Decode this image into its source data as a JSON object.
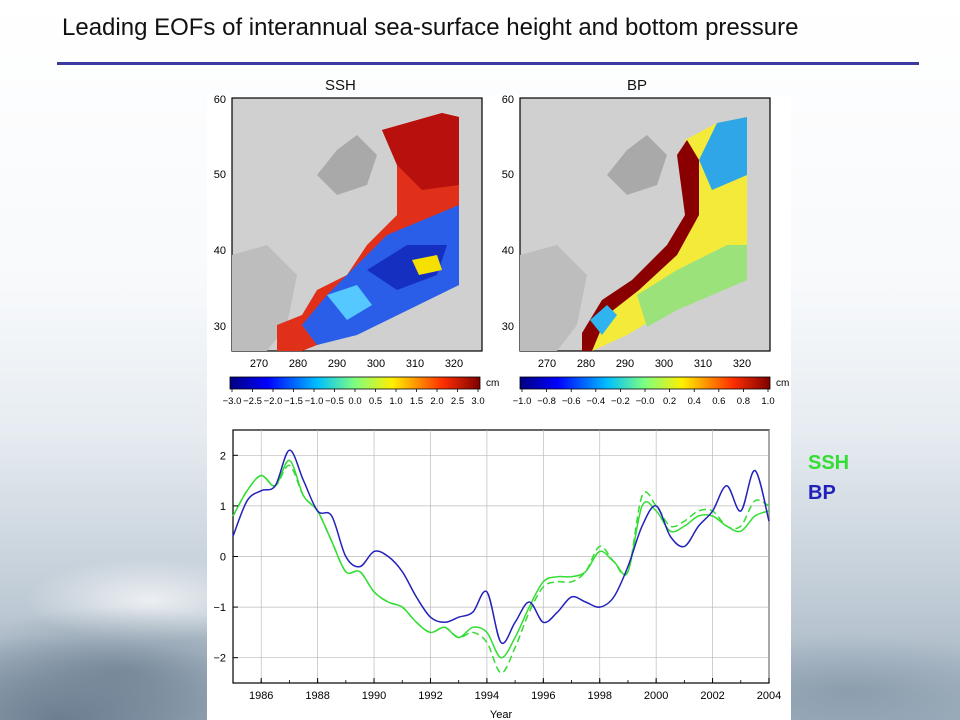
{
  "title": "Leading EOFs of interannual sea-surface height and bottom pressure",
  "maps": [
    {
      "label": "SSH",
      "lat_ticks": [
        "60",
        "50",
        "40",
        "30"
      ],
      "lon_ticks": [
        "270",
        "280",
        "290",
        "300",
        "310",
        "320"
      ],
      "colorbar_unit": "cm",
      "colorbar_ticks": [
        "−3.0",
        "−2.5",
        "−2.0",
        "−1.5",
        "−1.0",
        "−0.5",
        "0.0",
        "0.5",
        "1.0",
        "1.5",
        "2.0",
        "2.5",
        "3.0"
      ]
    },
    {
      "label": "BP",
      "lat_ticks": [
        "60",
        "50",
        "40",
        "30"
      ],
      "lon_ticks": [
        "270",
        "280",
        "290",
        "300",
        "310",
        "320"
      ],
      "colorbar_unit": "cm",
      "colorbar_ticks": [
        "−1.0",
        "−0.8",
        "−0.6",
        "−0.4",
        "−0.2",
        "−0.0",
        "0.2",
        "0.4",
        "0.6",
        "0.8",
        "1.0"
      ]
    }
  ],
  "legend": {
    "ssh": "SSH",
    "bp": "BP"
  },
  "colors": {
    "ssh": "#33dd33",
    "bp": "#2222bb",
    "rule": "#3a3aa0"
  },
  "chart_data": {
    "type": "line",
    "xlabel": "Year",
    "xlim": [
      1985,
      2004
    ],
    "ylim": [
      -2.5,
      2.5
    ],
    "x_ticks": [
      "1986",
      "1988",
      "1990",
      "1992",
      "1994",
      "1996",
      "1998",
      "2000",
      "2002",
      "2004"
    ],
    "y_ticks": [
      "2",
      "1",
      "0",
      "−1",
      "−2"
    ],
    "grid": true,
    "x": [
      1985.0,
      1985.5,
      1986.0,
      1986.5,
      1987.0,
      1987.5,
      1988.0,
      1988.5,
      1989.0,
      1989.5,
      1990.0,
      1990.5,
      1991.0,
      1991.5,
      1992.0,
      1992.5,
      1993.0,
      1993.5,
      1994.0,
      1994.5,
      1995.0,
      1995.5,
      1996.0,
      1996.5,
      1997.0,
      1997.5,
      1998.0,
      1998.5,
      1999.0,
      1999.5,
      2000.0,
      2000.5,
      2001.0,
      2001.5,
      2002.0,
      2002.5,
      2003.0,
      2003.5,
      2004.0
    ],
    "series": [
      {
        "name": "SSH",
        "style": "solid",
        "color": "green",
        "values": [
          0.8,
          1.3,
          1.6,
          1.4,
          1.9,
          1.2,
          0.9,
          0.3,
          -0.3,
          -0.3,
          -0.7,
          -0.9,
          -1.0,
          -1.3,
          -1.5,
          -1.4,
          -1.6,
          -1.4,
          -1.5,
          -2.0,
          -1.6,
          -1.0,
          -0.5,
          -0.4,
          -0.4,
          -0.3,
          0.1,
          -0.1,
          -0.3,
          1.0,
          0.9,
          0.5,
          0.6,
          0.8,
          0.8,
          0.6,
          0.5,
          0.8,
          0.9
        ]
      },
      {
        "name": "",
        "style": "dashed",
        "color": "green",
        "values": [
          0.8,
          1.3,
          1.6,
          1.4,
          1.8,
          1.2,
          0.9,
          0.3,
          -0.3,
          -0.3,
          -0.7,
          -0.9,
          -1.0,
          -1.3,
          -1.5,
          -1.4,
          -1.6,
          -1.5,
          -1.7,
          -2.3,
          -1.8,
          -1.1,
          -0.6,
          -0.5,
          -0.5,
          -0.3,
          0.2,
          -0.1,
          -0.3,
          1.2,
          1.0,
          0.6,
          0.7,
          0.9,
          0.9,
          0.6,
          0.6,
          1.1,
          1.0
        ]
      },
      {
        "name": "BP",
        "style": "solid",
        "color": "blue",
        "values": [
          0.4,
          1.1,
          1.3,
          1.4,
          2.1,
          1.5,
          0.9,
          0.8,
          0.0,
          -0.2,
          0.1,
          0.0,
          -0.3,
          -0.8,
          -1.2,
          -1.3,
          -1.2,
          -1.1,
          -0.7,
          -1.7,
          -1.3,
          -0.9,
          -1.3,
          -1.1,
          -0.8,
          -0.9,
          -1.0,
          -0.8,
          -0.2,
          0.6,
          1.0,
          0.4,
          0.2,
          0.6,
          0.9,
          1.4,
          0.9,
          1.7,
          0.7
        ]
      }
    ]
  }
}
